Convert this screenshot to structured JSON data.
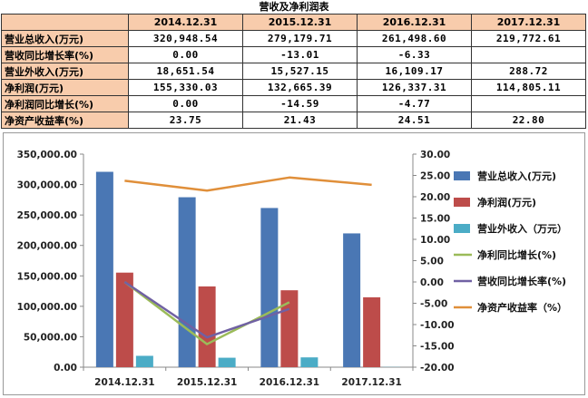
{
  "table": {
    "title": "营收及净利润表",
    "headers": [
      "",
      "2014.12.31",
      "2015.12.31",
      "2016.12.31",
      "2017.12.31"
    ],
    "rows": [
      {
        "label": "营业总收入(万元)",
        "values": [
          "320,948.54",
          "279,179.71",
          "261,498.60",
          "219,772.61"
        ]
      },
      {
        "label": "营收同比增长率(%)",
        "values": [
          "0.00",
          "-13.01",
          "-6.33",
          ""
        ]
      },
      {
        "label": "营业外收入(万元)",
        "values": [
          "18,651.54",
          "15,527.15",
          "16,109.17",
          "288.72"
        ]
      },
      {
        "label": "净利润(万元)",
        "values": [
          "155,330.03",
          "132,665.39",
          "126,337.31",
          "114,805.11"
        ]
      },
      {
        "label": "净利润同比增长(%)",
        "values": [
          "0.00",
          "-14.59",
          "-4.77",
          ""
        ]
      },
      {
        "label": "净资产收益率(%)",
        "values": [
          "23.75",
          "21.43",
          "24.51",
          "22.80"
        ]
      }
    ]
  },
  "chart_data": {
    "type": "bar",
    "categories": [
      "2014.12.31",
      "2015.12.31",
      "2016.12.31",
      "2017.12.31"
    ],
    "series": [
      {
        "name": "营业总收入(万元)",
        "kind": "bar",
        "axis": "left",
        "color": "#4a77b4",
        "values": [
          320948.54,
          279179.71,
          261498.6,
          219772.61
        ]
      },
      {
        "name": "净利润(万元)",
        "kind": "bar",
        "axis": "left",
        "color": "#bd4c4a",
        "values": [
          155330.03,
          132665.39,
          126337.31,
          114805.11
        ]
      },
      {
        "name": "营业外收入（万元）",
        "kind": "bar",
        "axis": "left",
        "color": "#4bacc6",
        "values": [
          18651.54,
          15527.15,
          16109.17,
          288.72
        ]
      },
      {
        "name": "净利同比增长(%)",
        "kind": "line",
        "axis": "right",
        "color": "#9bbb59",
        "values": [
          0.0,
          -14.59,
          -4.77,
          null
        ]
      },
      {
        "name": "营收同比增长率(%)",
        "kind": "line",
        "axis": "right",
        "color": "#7061a3",
        "values": [
          0.0,
          -13.01,
          -6.33,
          null
        ]
      },
      {
        "name": "净资产收益率（%）",
        "kind": "line",
        "axis": "right",
        "color": "#e08f3a",
        "values": [
          23.75,
          21.43,
          24.51,
          22.8
        ]
      }
    ],
    "y_left": {
      "min": 0,
      "max": 350000,
      "step": 50000,
      "tick_labels": [
        "0.00",
        "50,000.00",
        "100,000.00",
        "150,000.00",
        "200,000.00",
        "250,000.00",
        "300,000.00",
        "350,000.00"
      ]
    },
    "y_right": {
      "min": -20,
      "max": 30,
      "step": 5,
      "tick_labels": [
        "-20.00",
        "-15.00",
        "-10.00",
        "-5.00",
        "0.00",
        "5.00",
        "10.00",
        "15.00",
        "20.00",
        "25.00",
        "30.00"
      ]
    },
    "grid": false,
    "legend": "right"
  }
}
